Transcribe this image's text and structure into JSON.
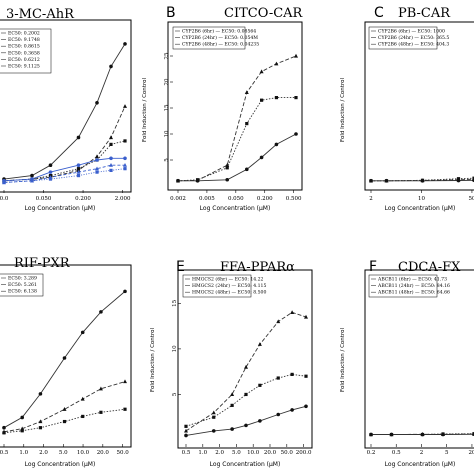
{
  "figure": {
    "panels": [
      {
        "id": "A",
        "letter": "",
        "title": "3-MC-AhR",
        "xlabel": "Log Concentration (µM)",
        "ylabel": "",
        "xticks": [
          "0.0",
          "0.050",
          "0.200",
          "2.000"
        ],
        "yticks": [],
        "legend": [
          "EC50: 0.2002",
          "EC50: 9.1748",
          "EC50: 0.8615",
          "EC50: 0.3658",
          "EC50: 0.6212",
          "EC50: 9.1125"
        ]
      },
      {
        "id": "B",
        "letter": "B",
        "title": "CITCO-CAR",
        "xlabel": "Log Concentration (µM)",
        "ylabel": "Fold Induction / Control",
        "xticks": [
          "0.002",
          "0.005",
          "0.050",
          "0.200",
          "0.500"
        ],
        "yticks": [
          "5",
          "10",
          "15",
          "20",
          "25"
        ],
        "legend": [
          "CYP2B6 (6hr) — EC50: 0.08564",
          "CYP2B6 (24hr) — EC50: 0.054M",
          "CYP2B6 (48hr) — EC50: 0.04235"
        ]
      },
      {
        "id": "C",
        "letter": "C",
        "title": "PB-CAR",
        "xlabel": "Log Concentration (µM)",
        "ylabel": "Fold Induction / Control",
        "xticks": [
          "2",
          "10",
          "50"
        ],
        "yticks": [],
        "legend": [
          "CYP2B6 (6hr) — EC50: 1000",
          "CYP2B6 (24hr) — EC50: 365.5",
          "CYP2B6 (48hr) — EC50: 404.3"
        ]
      },
      {
        "id": "D",
        "letter": "",
        "title": "RIF-PXR",
        "xlabel": "Log Concentration (µM)",
        "ylabel": "",
        "xticks": [
          "0.5",
          "1.0",
          "2.0",
          "5.0",
          "10.0",
          "20.0",
          "50.0"
        ],
        "yticks": [],
        "legend": [
          "EC50: 3.289",
          "EC50: 5.261",
          "EC50: 6.138"
        ]
      },
      {
        "id": "E",
        "letter": "E",
        "title": "FFA-PPARα",
        "xlabel": "Log Concentration (µM)",
        "ylabel": "Fold Induction / Control",
        "xticks": [
          "0.5",
          "1.0",
          "2.0",
          "5.0",
          "10.0",
          "20.0",
          "50.0",
          "200.0"
        ],
        "yticks": [
          "5",
          "10",
          "15"
        ],
        "legend": [
          "HMGCS2 (6hr) — EC50: 14.22",
          "HMGCS2 (24hr) — EC50: 4.115",
          "HMGCS2 (48hr) — EC50: 8.500"
        ]
      },
      {
        "id": "F",
        "letter": "F",
        "title": "CDCA-FX",
        "xlabel": "Log Concentration (µM)",
        "ylabel": "Fold Induction / Control",
        "xticks": [
          "0.2",
          "0.5",
          "2",
          "5",
          "20"
        ],
        "yticks": [],
        "legend": [
          "ABCB11 (6hr) — EC50: 41.73",
          "ABCB11 (24hr) — EC50: 84.16",
          "ABCB11 (48hr) — EC50: 64.66"
        ]
      }
    ]
  },
  "chart_data": [
    {
      "type": "line",
      "title": "3-MC-AhR",
      "xlabel": "Log Concentration (µM)",
      "x_scale": "log",
      "x": [
        0.005,
        0.02,
        0.05,
        0.2,
        0.5,
        1.0,
        2.0
      ],
      "series": [
        {
          "name": "EC50: 0.2002",
          "values": [
            0.4,
            0.6,
            1.2,
            2.8,
            4.8,
            6.9,
            8.2
          ]
        },
        {
          "name": "EC50: 9.1748",
          "values": [
            0.3,
            0.4,
            0.5,
            0.9,
            1.7,
            2.8,
            4.6
          ]
        },
        {
          "name": "EC50: 0.8615",
          "values": [
            0.3,
            0.4,
            0.6,
            1.0,
            1.5,
            2.4,
            2.6
          ]
        },
        {
          "name": "EC50: 0.3658",
          "values": [
            0.3,
            0.4,
            0.8,
            1.2,
            1.5,
            1.6,
            1.6
          ]
        },
        {
          "name": "EC50: 0.6212",
          "values": [
            0.2,
            0.3,
            0.5,
            0.8,
            1.0,
            1.2,
            1.2
          ]
        },
        {
          "name": "EC50: 9.1125",
          "values": [
            0.2,
            0.3,
            0.4,
            0.6,
            0.8,
            0.9,
            1.0
          ]
        }
      ]
    },
    {
      "type": "line",
      "title": "CITCO-CAR",
      "xlabel": "Log Concentration (µM)",
      "ylabel": "Fold Induction / Control",
      "x_scale": "log",
      "ylim": [
        0,
        30
      ],
      "x": [
        0.002,
        0.005,
        0.02,
        0.05,
        0.1,
        0.2,
        0.5
      ],
      "series": [
        {
          "name": "CYP2B6 (6hr)",
          "values": [
            1.0,
            1.0,
            1.2,
            3.2,
            5.5,
            8.0,
            10.0
          ]
        },
        {
          "name": "CYP2B6 (24hr)",
          "values": [
            1.0,
            1.1,
            4.0,
            18.0,
            22.0,
            23.5,
            25.0
          ]
        },
        {
          "name": "CYP2B6 (48hr)",
          "values": [
            1.0,
            1.2,
            3.5,
            12.0,
            16.5,
            17.0,
            17.0
          ]
        }
      ]
    },
    {
      "type": "line",
      "title": "PB-CAR",
      "xlabel": "Log Concentration (µM)",
      "ylabel": "Fold Induction / Control",
      "x_scale": "log",
      "x": [
        1,
        2,
        10,
        50,
        100
      ],
      "series": [
        {
          "name": "CYP2B6 (6hr)",
          "values": [
            1.0,
            1.0,
            1.0,
            1.05,
            1.1
          ]
        },
        {
          "name": "CYP2B6 (24hr)",
          "values": [
            1.0,
            1.0,
            1.05,
            1.2,
            1.3
          ]
        },
        {
          "name": "CYP2B6 (48hr)",
          "values": [
            1.0,
            1.0,
            1.1,
            1.4,
            1.5
          ]
        }
      ]
    },
    {
      "type": "line",
      "title": "RIF-PXR",
      "xlabel": "Log Concentration (µM)",
      "x_scale": "log",
      "x": [
        0.5,
        1.0,
        2.0,
        5.0,
        10.0,
        20.0,
        50.0
      ],
      "series": [
        {
          "name": "EC50: 3.289",
          "values": [
            1.2,
            2.2,
            4.5,
            8.0,
            10.5,
            12.5,
            14.5
          ]
        },
        {
          "name": "EC50: 5.261",
          "values": [
            0.8,
            1.1,
            1.8,
            3.0,
            4.0,
            5.0,
            5.7
          ]
        },
        {
          "name": "EC50: 6.138",
          "values": [
            0.7,
            0.9,
            1.2,
            1.8,
            2.3,
            2.7,
            3.0
          ]
        }
      ]
    },
    {
      "type": "line",
      "title": "FFA-PPARα",
      "xlabel": "Log Concentration (µM)",
      "ylabel": "Fold Induction / Control",
      "x_scale": "log",
      "ylim": [
        0,
        18
      ],
      "x": [
        0.5,
        2.0,
        5.0,
        10.0,
        20.0,
        50.0,
        100.0,
        200.0
      ],
      "series": [
        {
          "name": "HMGCS2 (6hr)",
          "values": [
            0.5,
            1.0,
            1.2,
            1.6,
            2.1,
            2.8,
            3.3,
            3.7
          ]
        },
        {
          "name": "HMGCS2 (24hr)",
          "values": [
            1.0,
            3.0,
            5.0,
            8.0,
            10.5,
            13.0,
            14.0,
            13.5
          ]
        },
        {
          "name": "HMGCS2 (48hr)",
          "values": [
            1.5,
            2.5,
            3.8,
            5.0,
            6.0,
            6.8,
            7.2,
            7.0
          ]
        }
      ]
    },
    {
      "type": "line",
      "title": "CDCA-FX",
      "xlabel": "Log Concentration (µM)",
      "ylabel": "Fold Induction / Control",
      "x_scale": "log",
      "x": [
        0.2,
        0.5,
        2,
        5,
        20
      ],
      "series": [
        {
          "name": "ABCB11 (6hr)",
          "values": [
            1.0,
            1.0,
            1.0,
            1.0,
            1.05
          ]
        },
        {
          "name": "ABCB11 (24hr)",
          "values": [
            1.0,
            1.0,
            1.05,
            1.05,
            1.1
          ]
        },
        {
          "name": "ABCB11 (48hr)",
          "values": [
            1.0,
            1.0,
            1.0,
            1.1,
            1.15
          ]
        }
      ]
    }
  ]
}
